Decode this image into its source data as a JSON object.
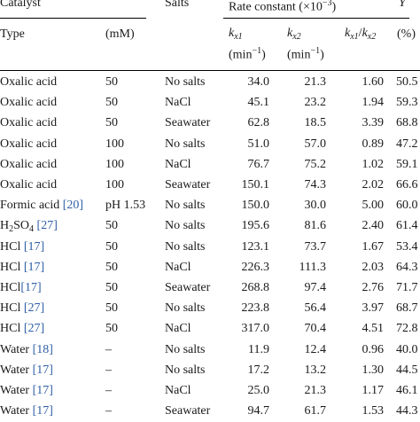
{
  "header": {
    "catalyst": "Catalyst",
    "salts": "Salts",
    "rate_constant": "Rate constant (×10",
    "rate_exp": "−3",
    "rate_close": ")",
    "y": "Y",
    "type": "Type",
    "mm": "(mM)",
    "kx1_unit": "(min",
    "kx2_unit": "(min",
    "unit_exp": "−1",
    "unit_close": ")",
    "ratio_slash": "/",
    "pct": "(%)"
  },
  "rows": [
    {
      "catalyst": "Oxalic acid",
      "ref": "",
      "mm": "50",
      "salt": "No salts",
      "kx1": "34.0",
      "kx2": "21.3",
      "ratio": "1.60",
      "y": "50.5"
    },
    {
      "catalyst": "Oxalic acid",
      "ref": "",
      "mm": "50",
      "salt": "NaCl",
      "kx1": "45.1",
      "kx2": "23.2",
      "ratio": "1.94",
      "y": "59.3"
    },
    {
      "catalyst": "Oxalic acid",
      "ref": "",
      "mm": "50",
      "salt": "Seawater",
      "kx1": "62.8",
      "kx2": "18.5",
      "ratio": "3.39",
      "y": "68.8"
    },
    {
      "catalyst": "Oxalic acid",
      "ref": "",
      "mm": "100",
      "salt": "No salts",
      "kx1": "51.0",
      "kx2": "57.0",
      "ratio": "0.89",
      "y": "47.2"
    },
    {
      "catalyst": "Oxalic acid",
      "ref": "",
      "mm": "100",
      "salt": "NaCl",
      "kx1": "76.7",
      "kx2": "75.2",
      "ratio": "1.02",
      "y": "59.1"
    },
    {
      "catalyst": "Oxalic acid",
      "ref": "",
      "mm": "100",
      "salt": "Seawater",
      "kx1": "150.1",
      "kx2": "74.3",
      "ratio": "2.02",
      "y": "66.6"
    },
    {
      "catalyst": "Formic acid ",
      "ref": "[20]",
      "mm": "pH 1.53",
      "salt": "No salts",
      "kx1": "150.0",
      "kx2": "30.0",
      "ratio": "5.00",
      "y": "60.0"
    },
    {
      "catalyst": "H2SO4 ",
      "ref": "[27]",
      "mm": "50",
      "salt": "No salts",
      "kx1": "195.6",
      "kx2": "81.6",
      "ratio": "2.40",
      "y": "61.4"
    },
    {
      "catalyst": "HCl ",
      "ref": "[17]",
      "mm": "50",
      "salt": "No salts",
      "kx1": "123.1",
      "kx2": "73.7",
      "ratio": "1.67",
      "y": "53.4"
    },
    {
      "catalyst": "HCl ",
      "ref": "[17]",
      "mm": "50",
      "salt": "NaCl",
      "kx1": "226.3",
      "kx2": "111.3",
      "ratio": "2.03",
      "y": "64.3"
    },
    {
      "catalyst": "HCl",
      "ref": "[17]",
      "mm": "50",
      "salt": "Seawater",
      "kx1": "268.8",
      "kx2": "97.4",
      "ratio": "2.76",
      "y": "71.7"
    },
    {
      "catalyst": "HCl ",
      "ref": "[27]",
      "mm": "50",
      "salt": "No salts",
      "kx1": "223.8",
      "kx2": "56.4",
      "ratio": "3.97",
      "y": "68.7"
    },
    {
      "catalyst": "HCl ",
      "ref": "[27]",
      "mm": "50",
      "salt": "NaCl",
      "kx1": "317.0",
      "kx2": "70.4",
      "ratio": "4.51",
      "y": "72.8"
    },
    {
      "catalyst": "Water ",
      "ref": "[18]",
      "mm": "–",
      "salt": "No salts",
      "kx1": "11.9",
      "kx2": "12.4",
      "ratio": "0.96",
      "y": "40.0"
    },
    {
      "catalyst": "Water ",
      "ref": "[17]",
      "mm": "–",
      "salt": "No salts",
      "kx1": "17.2",
      "kx2": "13.2",
      "ratio": "1.30",
      "y": "44.5"
    },
    {
      "catalyst": "Water ",
      "ref": "[17]",
      "mm": "–",
      "salt": "NaCl",
      "kx1": "25.0",
      "kx2": "21.3",
      "ratio": "1.17",
      "y": "46.1"
    },
    {
      "catalyst": "Water ",
      "ref": "[17]",
      "mm": "–",
      "salt": "Seawater",
      "kx1": "94.7",
      "kx2": "61.7",
      "ratio": "1.53",
      "y": "44.3"
    }
  ]
}
